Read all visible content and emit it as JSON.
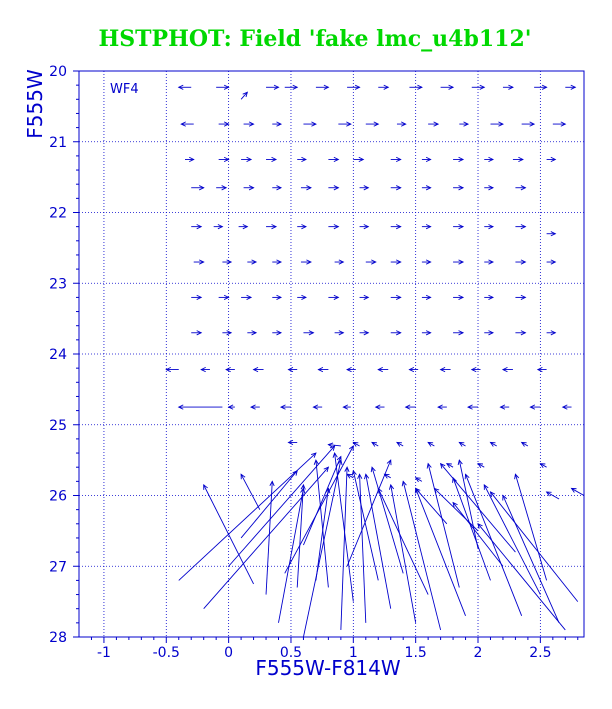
{
  "chart_data": {
    "type": "scatter",
    "title": "HSTPHOT: Field 'fake lmc_u4b112'",
    "xlabel": "F555W-F814W",
    "ylabel": "F555W",
    "chip_label": "WF4",
    "xlim": [
      -1.2,
      2.85
    ],
    "ylim": [
      28,
      20
    ],
    "xticks": [
      -1,
      -0.5,
      0,
      0.5,
      1,
      1.5,
      2,
      2.5
    ],
    "xtick_labels": [
      "-1",
      "-0.5",
      "0",
      "0.5",
      "1",
      "1.5",
      "2",
      "2.5"
    ],
    "yticks": [
      20,
      21,
      22,
      23,
      24,
      25,
      26,
      27,
      28
    ],
    "ytick_labels": [
      "20",
      "21",
      "22",
      "23",
      "24",
      "25",
      "26",
      "27",
      "28"
    ],
    "grid": true,
    "grid_style": "dotted",
    "colors": {
      "title": "#00d800",
      "axes": "#0000cc",
      "grid": "#0000cc"
    },
    "vectors_description": "Input-to-recovered displacement vectors; each entry is [x_start, y_start, x_end, y_end] in data units with arrow head at the end.",
    "vectors": [
      [
        -0.3,
        20.23,
        -0.4,
        20.23
      ],
      [
        -0.1,
        20.23,
        0.0,
        20.23
      ],
      [
        0.1,
        20.4,
        0.15,
        20.3
      ],
      [
        0.3,
        20.23,
        0.4,
        20.23
      ],
      [
        0.45,
        20.23,
        0.55,
        20.23
      ],
      [
        0.7,
        20.23,
        0.8,
        20.23
      ],
      [
        0.95,
        20.23,
        1.05,
        20.23
      ],
      [
        1.2,
        20.23,
        1.28,
        20.23
      ],
      [
        1.45,
        20.23,
        1.55,
        20.23
      ],
      [
        1.7,
        20.23,
        1.8,
        20.23
      ],
      [
        1.95,
        20.23,
        2.05,
        20.23
      ],
      [
        2.2,
        20.23,
        2.28,
        20.23
      ],
      [
        2.45,
        20.23,
        2.55,
        20.23
      ],
      [
        2.7,
        20.23,
        2.78,
        20.23
      ],
      [
        -0.28,
        20.75,
        -0.38,
        20.75
      ],
      [
        -0.08,
        20.75,
        0.0,
        20.75
      ],
      [
        0.12,
        20.75,
        0.2,
        20.75
      ],
      [
        0.35,
        20.75,
        0.42,
        20.75
      ],
      [
        0.6,
        20.75,
        0.7,
        20.75
      ],
      [
        0.88,
        20.75,
        0.98,
        20.75
      ],
      [
        1.1,
        20.75,
        1.2,
        20.75
      ],
      [
        1.35,
        20.75,
        1.42,
        20.75
      ],
      [
        1.6,
        20.75,
        1.68,
        20.75
      ],
      [
        1.85,
        20.75,
        1.92,
        20.75
      ],
      [
        2.1,
        20.75,
        2.2,
        20.75
      ],
      [
        2.35,
        20.75,
        2.45,
        20.75
      ],
      [
        2.6,
        20.75,
        2.7,
        20.75
      ],
      [
        -0.35,
        21.25,
        -0.28,
        21.25
      ],
      [
        -0.08,
        21.25,
        0.0,
        21.25
      ],
      [
        0.1,
        21.25,
        0.18,
        21.25
      ],
      [
        0.3,
        21.25,
        0.38,
        21.25
      ],
      [
        0.55,
        21.25,
        0.62,
        21.25
      ],
      [
        0.8,
        21.25,
        0.88,
        21.25
      ],
      [
        1.0,
        21.25,
        1.08,
        21.25
      ],
      [
        1.3,
        21.25,
        1.38,
        21.25
      ],
      [
        1.55,
        21.25,
        1.62,
        21.25
      ],
      [
        1.8,
        21.25,
        1.88,
        21.25
      ],
      [
        2.05,
        21.25,
        2.12,
        21.25
      ],
      [
        2.28,
        21.25,
        2.36,
        21.25
      ],
      [
        2.55,
        21.25,
        2.62,
        21.25
      ],
      [
        -0.3,
        21.65,
        -0.2,
        21.65
      ],
      [
        -0.1,
        21.65,
        -0.02,
        21.65
      ],
      [
        0.12,
        21.65,
        0.2,
        21.65
      ],
      [
        0.35,
        21.65,
        0.42,
        21.65
      ],
      [
        0.58,
        21.65,
        0.66,
        21.65
      ],
      [
        0.8,
        21.65,
        0.88,
        21.65
      ],
      [
        1.05,
        21.65,
        1.12,
        21.65
      ],
      [
        1.3,
        21.65,
        1.38,
        21.65
      ],
      [
        1.55,
        21.65,
        1.62,
        21.65
      ],
      [
        1.8,
        21.65,
        1.88,
        21.65
      ],
      [
        2.05,
        21.65,
        2.12,
        21.65
      ],
      [
        2.3,
        21.65,
        2.38,
        21.65
      ],
      [
        -0.3,
        22.2,
        -0.22,
        22.2
      ],
      [
        -0.12,
        22.2,
        -0.05,
        22.2
      ],
      [
        0.08,
        22.2,
        0.15,
        22.2
      ],
      [
        0.3,
        22.2,
        0.38,
        22.2
      ],
      [
        0.55,
        22.2,
        0.62,
        22.2
      ],
      [
        0.8,
        22.2,
        0.88,
        22.2
      ],
      [
        1.05,
        22.2,
        1.12,
        22.2
      ],
      [
        1.3,
        22.2,
        1.38,
        22.2
      ],
      [
        1.55,
        22.2,
        1.62,
        22.2
      ],
      [
        1.8,
        22.2,
        1.88,
        22.2
      ],
      [
        2.05,
        22.2,
        2.12,
        22.2
      ],
      [
        2.3,
        22.2,
        2.38,
        22.2
      ],
      [
        2.55,
        22.3,
        2.62,
        22.3
      ],
      [
        -0.28,
        22.7,
        -0.2,
        22.7
      ],
      [
        -0.05,
        22.7,
        0.02,
        22.7
      ],
      [
        0.15,
        22.7,
        0.22,
        22.7
      ],
      [
        0.35,
        22.7,
        0.42,
        22.7
      ],
      [
        0.58,
        22.7,
        0.66,
        22.7
      ],
      [
        0.85,
        22.7,
        0.92,
        22.7
      ],
      [
        1.1,
        22.7,
        1.18,
        22.7
      ],
      [
        1.3,
        22.7,
        1.38,
        22.7
      ],
      [
        1.55,
        22.7,
        1.62,
        22.7
      ],
      [
        1.8,
        22.7,
        1.88,
        22.7
      ],
      [
        2.05,
        22.7,
        2.12,
        22.7
      ],
      [
        2.3,
        22.7,
        2.38,
        22.7
      ],
      [
        2.55,
        22.7,
        2.62,
        22.7
      ],
      [
        -0.3,
        23.2,
        -0.22,
        23.2
      ],
      [
        -0.08,
        23.2,
        0.0,
        23.2
      ],
      [
        0.1,
        23.2,
        0.18,
        23.2
      ],
      [
        0.35,
        23.2,
        0.42,
        23.2
      ],
      [
        0.55,
        23.2,
        0.62,
        23.2
      ],
      [
        0.8,
        23.2,
        0.88,
        23.2
      ],
      [
        1.05,
        23.2,
        1.12,
        23.2
      ],
      [
        1.3,
        23.2,
        1.38,
        23.2
      ],
      [
        1.55,
        23.2,
        1.62,
        23.2
      ],
      [
        1.8,
        23.2,
        1.88,
        23.2
      ],
      [
        2.05,
        23.2,
        2.12,
        23.2
      ],
      [
        2.3,
        23.2,
        2.38,
        23.2
      ],
      [
        -0.3,
        23.7,
        -0.22,
        23.7
      ],
      [
        -0.05,
        23.7,
        0.02,
        23.7
      ],
      [
        0.15,
        23.7,
        0.22,
        23.7
      ],
      [
        0.35,
        23.7,
        0.42,
        23.7
      ],
      [
        0.6,
        23.7,
        0.68,
        23.7
      ],
      [
        0.85,
        23.7,
        0.92,
        23.7
      ],
      [
        1.05,
        23.7,
        1.12,
        23.7
      ],
      [
        1.3,
        23.7,
        1.38,
        23.7
      ],
      [
        1.55,
        23.7,
        1.62,
        23.7
      ],
      [
        1.8,
        23.7,
        1.88,
        23.7
      ],
      [
        2.05,
        23.7,
        2.12,
        23.7
      ],
      [
        2.3,
        23.7,
        2.38,
        23.7
      ],
      [
        2.55,
        23.7,
        2.62,
        23.7
      ],
      [
        -0.4,
        24.22,
        -0.5,
        24.22
      ],
      [
        -0.15,
        24.22,
        -0.22,
        24.22
      ],
      [
        0.05,
        24.22,
        -0.02,
        24.22
      ],
      [
        0.28,
        24.22,
        0.2,
        24.22
      ],
      [
        0.55,
        24.22,
        0.48,
        24.22
      ],
      [
        0.8,
        24.22,
        0.72,
        24.22
      ],
      [
        1.02,
        24.22,
        0.95,
        24.22
      ],
      [
        1.28,
        24.22,
        1.2,
        24.22
      ],
      [
        1.52,
        24.22,
        1.45,
        24.22
      ],
      [
        1.78,
        24.22,
        1.7,
        24.22
      ],
      [
        2.02,
        24.22,
        1.95,
        24.22
      ],
      [
        2.28,
        24.22,
        2.2,
        24.22
      ],
      [
        2.55,
        24.22,
        2.48,
        24.22
      ],
      [
        -0.05,
        24.75,
        -0.4,
        24.75
      ],
      [
        0.05,
        24.75,
        0.0,
        24.75
      ],
      [
        0.25,
        24.75,
        0.18,
        24.75
      ],
      [
        0.5,
        24.75,
        0.42,
        24.75
      ],
      [
        0.75,
        24.75,
        0.68,
        24.75
      ],
      [
        0.98,
        24.75,
        0.92,
        24.75
      ],
      [
        1.25,
        24.75,
        1.18,
        24.75
      ],
      [
        1.5,
        24.75,
        1.42,
        24.75
      ],
      [
        1.75,
        24.75,
        1.68,
        24.75
      ],
      [
        2.0,
        24.75,
        1.92,
        24.75
      ],
      [
        2.25,
        24.75,
        2.18,
        24.75
      ],
      [
        2.5,
        24.75,
        2.42,
        24.75
      ],
      [
        2.75,
        24.75,
        2.68,
        24.75
      ],
      [
        0.55,
        25.25,
        0.48,
        25.25
      ],
      [
        0.9,
        25.3,
        0.8,
        25.28
      ],
      [
        1.05,
        25.3,
        1.0,
        25.25
      ],
      [
        1.2,
        25.3,
        1.15,
        25.25
      ],
      [
        1.4,
        25.3,
        1.35,
        25.25
      ],
      [
        1.65,
        25.3,
        1.6,
        25.25
      ],
      [
        1.9,
        25.3,
        1.85,
        25.25
      ],
      [
        2.15,
        25.3,
        2.1,
        25.25
      ],
      [
        2.4,
        25.3,
        2.35,
        25.25
      ],
      [
        2.55,
        25.6,
        2.5,
        25.55
      ],
      [
        2.05,
        25.6,
        2.0,
        25.55
      ],
      [
        1.8,
        25.6,
        1.75,
        25.55
      ],
      [
        1.55,
        25.8,
        1.5,
        25.75
      ],
      [
        1.3,
        25.75,
        1.25,
        25.7
      ],
      [
        1.0,
        25.75,
        0.95,
        25.7
      ],
      [
        2.65,
        26.05,
        2.55,
        25.95
      ],
      [
        2.85,
        26.0,
        2.75,
        25.9
      ],
      [
        0.2,
        27.25,
        -0.2,
        25.85
      ],
      [
        0.3,
        27.4,
        0.35,
        25.8
      ],
      [
        0.55,
        27.3,
        0.6,
        25.85
      ],
      [
        0.7,
        27.2,
        0.8,
        25.9
      ],
      [
        -0.4,
        27.2,
        0.7,
        25.4
      ],
      [
        -0.2,
        27.6,
        0.8,
        25.6
      ],
      [
        0.4,
        27.8,
        0.6,
        25.9
      ],
      [
        0.6,
        28.0,
        0.9,
        25.5
      ],
      [
        0.9,
        27.9,
        0.95,
        25.6
      ],
      [
        1.1,
        27.8,
        1.05,
        25.7
      ],
      [
        1.3,
        27.6,
        1.1,
        25.7
      ],
      [
        1.5,
        27.8,
        1.3,
        25.85
      ],
      [
        1.7,
        27.9,
        1.4,
        25.8
      ],
      [
        1.6,
        27.4,
        1.2,
        25.9
      ],
      [
        1.9,
        27.7,
        1.5,
        25.9
      ],
      [
        2.1,
        27.2,
        1.8,
        25.75
      ],
      [
        2.35,
        27.7,
        1.9,
        25.7
      ],
      [
        2.5,
        27.4,
        2.05,
        25.85
      ],
      [
        2.65,
        27.8,
        2.2,
        26.0
      ],
      [
        2.8,
        27.5,
        2.1,
        25.95
      ],
      [
        0.8,
        27.3,
        0.7,
        25.5
      ],
      [
        1.0,
        27.5,
        0.85,
        25.4
      ],
      [
        1.2,
        27.2,
        1.0,
        25.65
      ],
      [
        0.0,
        27.0,
        0.85,
        25.3
      ],
      [
        0.1,
        26.6,
        0.55,
        25.65
      ],
      [
        0.45,
        27.1,
        1.0,
        25.3
      ],
      [
        0.6,
        26.7,
        0.9,
        25.45
      ],
      [
        0.95,
        27.0,
        1.3,
        25.5
      ],
      [
        1.4,
        27.1,
        1.15,
        25.6
      ],
      [
        1.85,
        27.3,
        1.6,
        25.55
      ],
      [
        2.0,
        26.75,
        1.85,
        25.5
      ],
      [
        2.3,
        26.8,
        1.7,
        25.55
      ],
      [
        2.55,
        27.2,
        2.3,
        25.7
      ],
      [
        1.75,
        26.4,
        1.5,
        25.9
      ],
      [
        2.0,
        26.5,
        1.65,
        25.9
      ],
      [
        2.2,
        27.0,
        1.8,
        26.1
      ],
      [
        2.7,
        27.9,
        2.0,
        26.4
      ],
      [
        0.25,
        26.2,
        0.1,
        25.7
      ]
    ]
  }
}
